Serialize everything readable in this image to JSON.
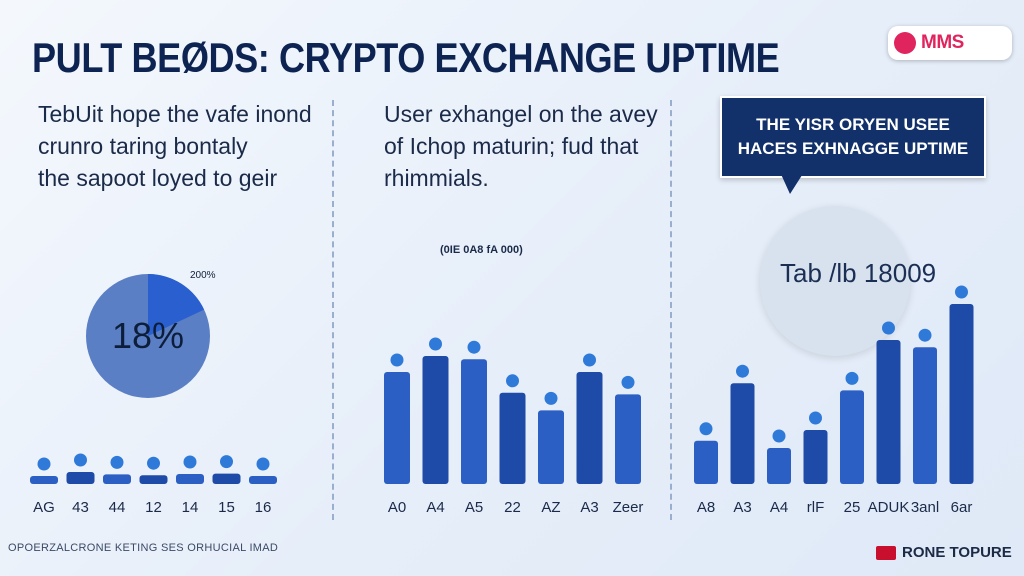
{
  "title": "PULT BEØDS: CRYPTO EXCHANGE UPTIME",
  "logo_text": "MMS",
  "panel1": {
    "desc": [
      "TebUit hope the vafe inond",
      "crunro taring bontaly",
      "the sapoot loyed to geir"
    ],
    "pie_label": "18%",
    "pie_annotation": "200%"
  },
  "panel2": {
    "desc": [
      "User exhangel on the avey",
      "of Ichop maturin; fud that",
      "rhimmials."
    ],
    "mid_label": "(0IE 0A8 fA 000)"
  },
  "panel3": {
    "callout": [
      "THE YISR ORYEN USEE",
      "HACES EXHNAGGE UPTIME"
    ],
    "stat": "Tab /lb 18009"
  },
  "footer": {
    "left": "OPOERZALCRONE KETING SES ORHUCIAL IMAD",
    "brand": "RONE TOPURE"
  },
  "colors": {
    "bar": "#2c5fc4",
    "bar_dark": "#1e4aa8",
    "dot": "#2f7ad9",
    "pie_main": "#5b7fc4",
    "pie_slice": "#2a5fd0"
  },
  "chart_data": [
    {
      "type": "pie",
      "values": [
        18,
        82
      ],
      "labels": [
        "18%",
        ""
      ],
      "annotations": [
        "200%"
      ]
    },
    {
      "type": "bar",
      "categories": [
        "AG",
        "43",
        "44",
        "12",
        "14",
        "15",
        "16"
      ],
      "values": [
        20,
        30,
        24,
        22,
        25,
        26,
        20
      ],
      "ylim": [
        0,
        100
      ]
    },
    {
      "type": "bar",
      "categories": [
        "A0",
        "A4",
        "A5",
        "22",
        "AZ",
        "A3",
        "Zeer"
      ],
      "values": [
        70,
        80,
        78,
        57,
        46,
        70,
        56
      ],
      "ylim": [
        0,
        100
      ]
    },
    {
      "type": "bar",
      "categories": [
        "A8",
        "A3",
        "A4",
        "rlF",
        "25",
        "ADUK",
        "3anl",
        "6ar"
      ],
      "values": [
        24,
        56,
        20,
        30,
        52,
        80,
        76,
        100
      ],
      "ylim": [
        0,
        100
      ]
    }
  ]
}
